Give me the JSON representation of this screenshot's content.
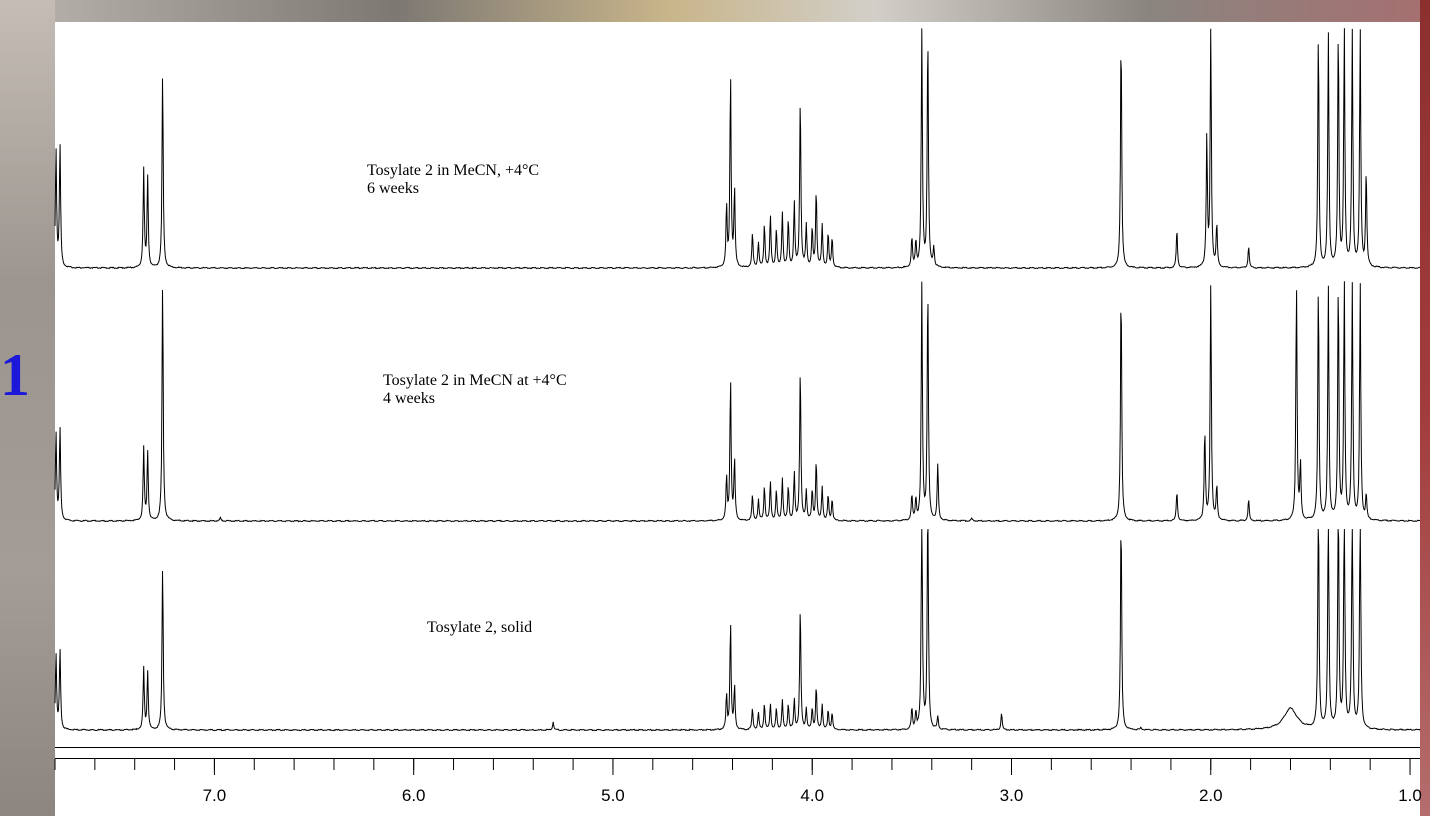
{
  "chart_data": {
    "type": "line",
    "title": "",
    "xlabel": "",
    "ylabel": "",
    "xlim": [
      7.8,
      0.95
    ],
    "x_reversed": true,
    "tick_labels": [
      "7.0",
      "6.0",
      "5.0",
      "4.0",
      "3.0",
      "2.0",
      "1.0"
    ],
    "tick_values": [
      7.0,
      6.0,
      5.0,
      4.0,
      3.0,
      2.0,
      1.0
    ],
    "grid": false,
    "series": [
      {
        "label_line1": "Tosylate 2 in MeCN, +4°C",
        "label_line2": "6 weeks",
        "peaks": [
          {
            "x": 7.795,
            "h": 0.56
          },
          {
            "x": 7.775,
            "h": 0.58
          },
          {
            "x": 7.355,
            "h": 0.46
          },
          {
            "x": 7.335,
            "h": 0.42
          },
          {
            "x": 7.26,
            "h": 0.9
          },
          {
            "x": 4.43,
            "h": 0.28
          },
          {
            "x": 4.41,
            "h": 0.9
          },
          {
            "x": 4.39,
            "h": 0.36
          },
          {
            "x": 4.3,
            "h": 0.16
          },
          {
            "x": 4.27,
            "h": 0.12
          },
          {
            "x": 4.24,
            "h": 0.2
          },
          {
            "x": 4.21,
            "h": 0.24
          },
          {
            "x": 4.18,
            "h": 0.18
          },
          {
            "x": 4.15,
            "h": 0.26
          },
          {
            "x": 4.12,
            "h": 0.22
          },
          {
            "x": 4.09,
            "h": 0.3
          },
          {
            "x": 4.06,
            "h": 0.8
          },
          {
            "x": 4.03,
            "h": 0.2
          },
          {
            "x": 4.0,
            "h": 0.18
          },
          {
            "x": 3.98,
            "h": 0.36
          },
          {
            "x": 3.95,
            "h": 0.2
          },
          {
            "x": 3.92,
            "h": 0.16
          },
          {
            "x": 3.9,
            "h": 0.14
          },
          {
            "x": 3.5,
            "h": 0.14
          },
          {
            "x": 3.48,
            "h": 0.12
          },
          {
            "x": 3.45,
            "h": 1.1
          },
          {
            "x": 3.42,
            "h": 1.1
          },
          {
            "x": 3.39,
            "h": 0.09
          },
          {
            "x": 2.45,
            "h": 1.1
          },
          {
            "x": 2.17,
            "h": 0.18
          },
          {
            "x": 2.02,
            "h": 0.6
          },
          {
            "x": 2.0,
            "h": 1.1
          },
          {
            "x": 1.97,
            "h": 0.2
          },
          {
            "x": 1.81,
            "h": 0.1
          },
          {
            "x": 1.46,
            "h": 1.1
          },
          {
            "x": 1.41,
            "h": 1.1
          },
          {
            "x": 1.36,
            "h": 1.1
          },
          {
            "x": 1.33,
            "h": 1.1
          },
          {
            "x": 1.29,
            "h": 1.1
          },
          {
            "x": 1.25,
            "h": 1.1
          },
          {
            "x": 1.22,
            "h": 0.45
          }
        ]
      },
      {
        "label_line1": "Tosylate 2 in MeCN at +4°C",
        "label_line2": "4 weeks",
        "peaks": [
          {
            "x": 7.795,
            "h": 0.42
          },
          {
            "x": 7.775,
            "h": 0.44
          },
          {
            "x": 7.355,
            "h": 0.34
          },
          {
            "x": 7.335,
            "h": 0.32
          },
          {
            "x": 7.26,
            "h": 1.1
          },
          {
            "x": 6.97,
            "h": 0.015
          },
          {
            "x": 4.43,
            "h": 0.2
          },
          {
            "x": 4.41,
            "h": 0.66
          },
          {
            "x": 4.39,
            "h": 0.28
          },
          {
            "x": 4.3,
            "h": 0.12
          },
          {
            "x": 4.27,
            "h": 0.1
          },
          {
            "x": 4.24,
            "h": 0.16
          },
          {
            "x": 4.21,
            "h": 0.18
          },
          {
            "x": 4.18,
            "h": 0.14
          },
          {
            "x": 4.15,
            "h": 0.2
          },
          {
            "x": 4.12,
            "h": 0.16
          },
          {
            "x": 4.09,
            "h": 0.22
          },
          {
            "x": 4.06,
            "h": 0.72
          },
          {
            "x": 4.03,
            "h": 0.14
          },
          {
            "x": 4.0,
            "h": 0.14
          },
          {
            "x": 3.98,
            "h": 0.28
          },
          {
            "x": 3.95,
            "h": 0.16
          },
          {
            "x": 3.92,
            "h": 0.12
          },
          {
            "x": 3.9,
            "h": 0.1
          },
          {
            "x": 3.5,
            "h": 0.12
          },
          {
            "x": 3.48,
            "h": 0.1
          },
          {
            "x": 3.45,
            "h": 1.1
          },
          {
            "x": 3.42,
            "h": 1.1
          },
          {
            "x": 3.37,
            "h": 0.26
          },
          {
            "x": 3.2,
            "h": 0.012
          },
          {
            "x": 2.45,
            "h": 1.1
          },
          {
            "x": 2.17,
            "h": 0.14
          },
          {
            "x": 2.03,
            "h": 0.42
          },
          {
            "x": 2.0,
            "h": 1.1
          },
          {
            "x": 1.97,
            "h": 0.16
          },
          {
            "x": 1.81,
            "h": 0.1
          },
          {
            "x": 1.57,
            "h": 1.1
          },
          {
            "x": 1.55,
            "h": 0.26
          },
          {
            "x": 1.46,
            "h": 1.1
          },
          {
            "x": 1.41,
            "h": 1.1
          },
          {
            "x": 1.36,
            "h": 1.1
          },
          {
            "x": 1.33,
            "h": 1.1
          },
          {
            "x": 1.29,
            "h": 1.1
          },
          {
            "x": 1.25,
            "h": 1.1
          },
          {
            "x": 1.22,
            "h": 0.12
          }
        ]
      },
      {
        "label_line1": "Tosylate 2, solid",
        "label_line2": "",
        "peaks": [
          {
            "x": 7.795,
            "h": 0.36
          },
          {
            "x": 7.775,
            "h": 0.38
          },
          {
            "x": 7.355,
            "h": 0.29
          },
          {
            "x": 7.335,
            "h": 0.27
          },
          {
            "x": 7.26,
            "h": 0.76
          },
          {
            "x": 5.3,
            "h": 0.04
          },
          {
            "x": 4.43,
            "h": 0.16
          },
          {
            "x": 4.41,
            "h": 0.5
          },
          {
            "x": 4.39,
            "h": 0.2
          },
          {
            "x": 4.3,
            "h": 0.1
          },
          {
            "x": 4.27,
            "h": 0.08
          },
          {
            "x": 4.24,
            "h": 0.12
          },
          {
            "x": 4.21,
            "h": 0.12
          },
          {
            "x": 4.18,
            "h": 0.1
          },
          {
            "x": 4.15,
            "h": 0.14
          },
          {
            "x": 4.12,
            "h": 0.12
          },
          {
            "x": 4.09,
            "h": 0.14
          },
          {
            "x": 4.06,
            "h": 0.58
          },
          {
            "x": 4.03,
            "h": 0.1
          },
          {
            "x": 4.0,
            "h": 0.1
          },
          {
            "x": 3.98,
            "h": 0.2
          },
          {
            "x": 3.95,
            "h": 0.12
          },
          {
            "x": 3.92,
            "h": 0.09
          },
          {
            "x": 3.9,
            "h": 0.08
          },
          {
            "x": 3.5,
            "h": 0.1
          },
          {
            "x": 3.48,
            "h": 0.08
          },
          {
            "x": 3.45,
            "h": 1.1
          },
          {
            "x": 3.42,
            "h": 1.1
          },
          {
            "x": 3.37,
            "h": 0.06
          },
          {
            "x": 3.05,
            "h": 0.08
          },
          {
            "x": 2.45,
            "h": 1.0
          },
          {
            "x": 2.35,
            "h": 0.01
          },
          {
            "x": 1.46,
            "h": 1.1
          },
          {
            "x": 1.41,
            "h": 1.1
          },
          {
            "x": 1.36,
            "h": 1.1
          },
          {
            "x": 1.33,
            "h": 1.1
          },
          {
            "x": 1.29,
            "h": 1.1
          },
          {
            "x": 1.25,
            "h": 1.1
          }
        ],
        "broad_peaks": [
          {
            "x": 1.6,
            "h": 0.1
          }
        ]
      }
    ]
  }
}
